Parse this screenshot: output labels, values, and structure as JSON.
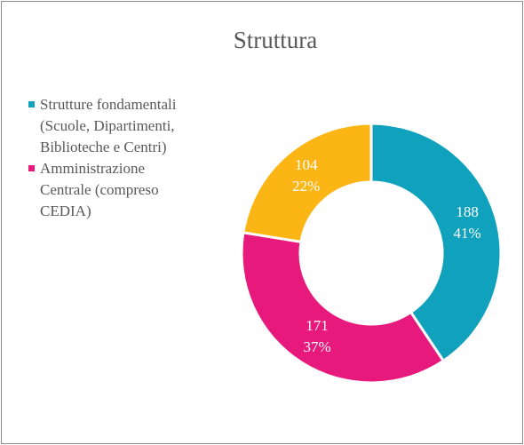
{
  "chart_data": {
    "type": "donut",
    "title": "Struttura",
    "categories": [
      "Strutture fondamentali (Scuole, Dipartimenti, Biblioteche e Centri)",
      "Amministrazione Centrale (compreso CEDIA)",
      null
    ],
    "values": [
      188,
      171,
      104
    ],
    "percent_labels": [
      "41%",
      "37%",
      "22%"
    ],
    "colors": [
      "#10a2bc",
      "#e8197d",
      "#fbb616"
    ],
    "legend": "left"
  }
}
